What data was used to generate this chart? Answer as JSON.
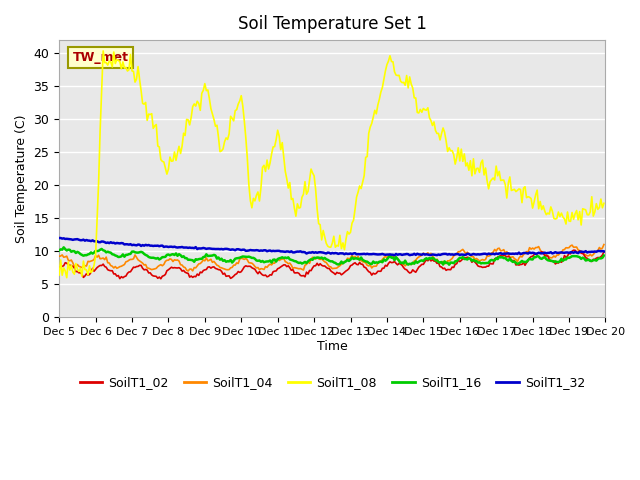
{
  "title": "Soil Temperature Set 1",
  "xlabel": "Time",
  "ylabel": "Soil Temperature (C)",
  "ylim": [
    0,
    42
  ],
  "yticks": [
    0,
    5,
    10,
    15,
    20,
    25,
    30,
    35,
    40
  ],
  "bg_color": "#e8e8e8",
  "line_colors": {
    "SoilT1_02": "#dd0000",
    "SoilT1_04": "#ff8800",
    "SoilT1_08": "#ffff00",
    "SoilT1_16": "#00cc00",
    "SoilT1_32": "#0000cc"
  },
  "legend_labels": [
    "SoilT1_02",
    "SoilT1_04",
    "SoilT1_08",
    "SoilT1_16",
    "SoilT1_32"
  ],
  "annotation_text": "TW_met"
}
